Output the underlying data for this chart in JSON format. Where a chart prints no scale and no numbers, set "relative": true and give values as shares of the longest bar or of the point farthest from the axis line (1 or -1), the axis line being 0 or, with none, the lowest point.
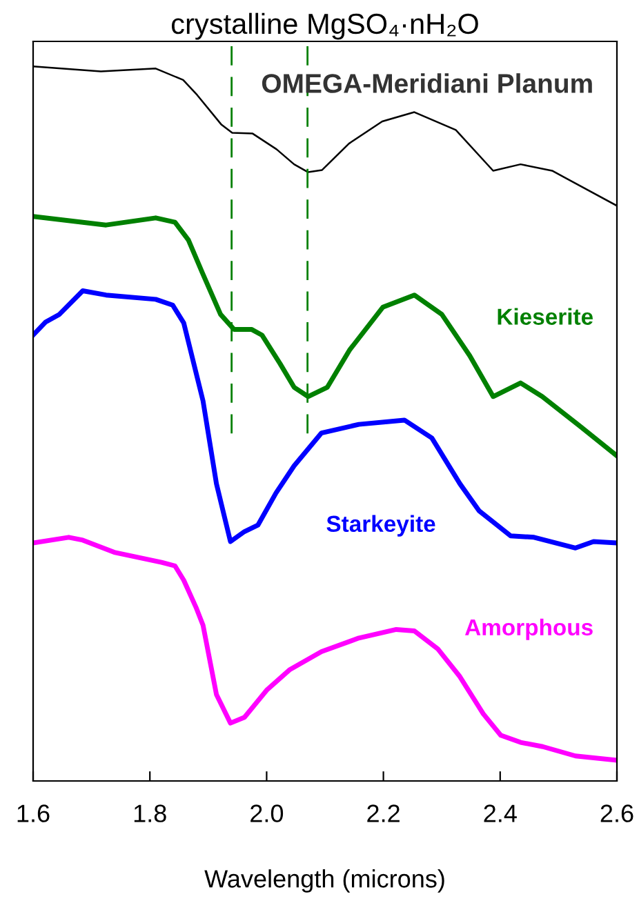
{
  "chart_data": {
    "type": "line",
    "title": "crystalline MgSO₄·nH₂O",
    "xlabel": "Wavelength (microns)",
    "relative": true,
    "xlim": [
      1.6,
      2.6
    ],
    "xticks": [
      {
        "value": 1.6,
        "label": "1.6"
      },
      {
        "value": 1.8,
        "label": "1.8"
      },
      {
        "value": 2.0,
        "label": "2.0"
      },
      {
        "value": 2.2,
        "label": "2.2"
      },
      {
        "value": 2.4,
        "label": "2.4"
      },
      {
        "value": 2.6,
        "label": "2.6"
      }
    ],
    "tick_labels": "x",
    "grid": false,
    "legend": false,
    "marker": "none",
    "line_style": "solid",
    "ref_lines": [
      {
        "axis": "x",
        "value": 1.94,
        "color": "#008000",
        "line_style": "dashed"
      },
      {
        "axis": "x",
        "value": 2.07,
        "color": "#008000",
        "line_style": "dashed"
      }
    ],
    "series": [
      {
        "name": "OMEGA-Meridiani Planum",
        "color": "#000000",
        "x": [
          1.6,
          1.716,
          1.81,
          1.857,
          1.881,
          1.922,
          1.941,
          1.976,
          2.017,
          2.047,
          2.071,
          2.095,
          2.141,
          2.198,
          2.253,
          2.324,
          2.388,
          2.435,
          2.489,
          2.6
        ],
        "values": [
          1.0,
          0.993,
          0.997,
          0.981,
          0.96,
          0.919,
          0.907,
          0.906,
          0.884,
          0.863,
          0.852,
          0.855,
          0.892,
          0.923,
          0.936,
          0.911,
          0.854,
          0.863,
          0.854,
          0.805
        ]
      },
      {
        "name": "Kieserite",
        "color": "#008000",
        "x": [
          1.6,
          1.725,
          1.81,
          1.843,
          1.866,
          1.89,
          1.921,
          1.944,
          1.974,
          1.992,
          2.023,
          2.047,
          2.071,
          2.104,
          2.142,
          2.199,
          2.253,
          2.3,
          2.348,
          2.388,
          2.435,
          2.472,
          2.536,
          2.6
        ],
        "values": [
          0.79,
          0.778,
          0.788,
          0.782,
          0.757,
          0.711,
          0.653,
          0.632,
          0.632,
          0.624,
          0.584,
          0.551,
          0.538,
          0.551,
          0.603,
          0.663,
          0.68,
          0.653,
          0.595,
          0.538,
          0.557,
          0.538,
          0.497,
          0.455
        ]
      },
      {
        "name": "Starkeyite",
        "color": "#0000ff",
        "x": [
          1.6,
          1.621,
          1.645,
          1.685,
          1.725,
          1.81,
          1.839,
          1.858,
          1.881,
          1.891,
          1.914,
          1.938,
          1.962,
          1.985,
          2.016,
          2.047,
          2.094,
          2.158,
          2.236,
          2.283,
          2.331,
          2.364,
          2.418,
          2.458,
          2.529,
          2.56,
          2.6
        ],
        "values": [
          0.624,
          0.642,
          0.653,
          0.686,
          0.68,
          0.674,
          0.666,
          0.641,
          0.565,
          0.532,
          0.416,
          0.335,
          0.349,
          0.358,
          0.403,
          0.441,
          0.487,
          0.499,
          0.505,
          0.48,
          0.416,
          0.378,
          0.343,
          0.341,
          0.326,
          0.335,
          0.333
        ]
      },
      {
        "name": "Amorphous",
        "color": "#ff00ff",
        "x": [
          1.6,
          1.661,
          1.685,
          1.739,
          1.82,
          1.843,
          1.858,
          1.879,
          1.891,
          1.914,
          1.938,
          1.962,
          2.0,
          2.04,
          2.094,
          2.158,
          2.222,
          2.253,
          2.293,
          2.331,
          2.371,
          2.401,
          2.435,
          2.473,
          2.529,
          2.6
        ],
        "values": [
          0.333,
          0.341,
          0.337,
          0.32,
          0.306,
          0.301,
          0.281,
          0.243,
          0.218,
          0.121,
          0.081,
          0.089,
          0.127,
          0.156,
          0.181,
          0.2,
          0.212,
          0.21,
          0.185,
          0.146,
          0.094,
          0.064,
          0.054,
          0.048,
          0.035,
          0.029
        ]
      }
    ]
  }
}
